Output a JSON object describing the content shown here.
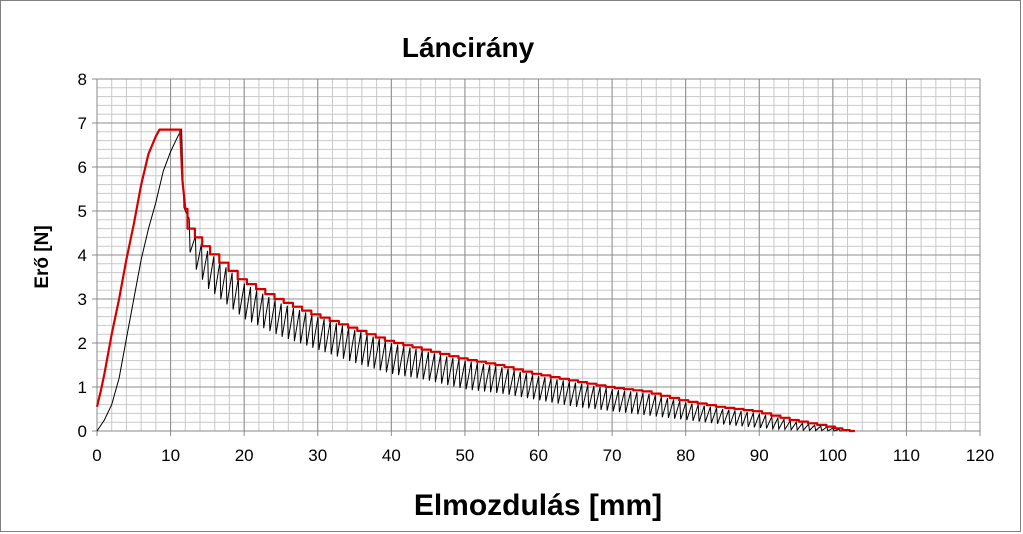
{
  "chart_data": {
    "type": "line",
    "title": "Láncirány",
    "xlabel": "Elmozdulás [mm]",
    "ylabel": "Erő [N]",
    "xlim": [
      0,
      120
    ],
    "ylim": [
      0,
      8
    ],
    "x_ticks": [
      "0",
      "10",
      "20",
      "30",
      "40",
      "50",
      "60",
      "70",
      "80",
      "90",
      "100",
      "110",
      "120"
    ],
    "y_ticks": [
      "0",
      "1",
      "2",
      "3",
      "4",
      "5",
      "6",
      "7",
      "8"
    ],
    "grid": "major and minor",
    "legend": "none",
    "series": [
      {
        "color": "#000000",
        "kind": "sawtooth",
        "rise": {
          "x": [
            0,
            1,
            2,
            3,
            4,
            5,
            6,
            7,
            8,
            9,
            10,
            11,
            11.5
          ],
          "y": [
            0,
            0.25,
            0.6,
            1.2,
            2.1,
            3.0,
            3.9,
            4.6,
            5.2,
            5.9,
            6.35,
            6.7,
            6.85
          ]
        },
        "peaks": {
          "x": [
            11.7,
            12.2,
            13,
            15,
            20,
            25,
            30,
            35,
            40,
            45,
            50,
            55,
            60,
            65,
            70,
            75,
            80,
            85,
            90,
            95,
            100,
            102
          ],
          "y": [
            5.65,
            5.05,
            4.5,
            4.1,
            3.35,
            2.9,
            2.6,
            2.3,
            2.0,
            1.8,
            1.6,
            1.45,
            1.25,
            1.1,
            0.95,
            0.85,
            0.65,
            0.5,
            0.4,
            0.2,
            0.07,
            0.0
          ]
        },
        "troughs": {
          "x": [
            11.7,
            12.2,
            13,
            15,
            20,
            25,
            30,
            35,
            40,
            45,
            50,
            55,
            60,
            65,
            70,
            75,
            80,
            85,
            90,
            95,
            100,
            102
          ],
          "y": [
            5.3,
            4.4,
            3.8,
            3.25,
            2.55,
            2.15,
            1.85,
            1.55,
            1.3,
            1.15,
            0.95,
            0.85,
            0.7,
            0.55,
            0.45,
            0.35,
            0.25,
            0.15,
            0.07,
            0.02,
            0.0,
            0.0
          ]
        },
        "teeth_per_mm": 1.2
      },
      {
        "color": "#d40000",
        "kind": "envelope",
        "x": [
          0,
          0.5,
          1,
          2,
          3,
          4,
          5,
          6,
          7,
          8,
          8.5,
          10,
          11.3,
          11.6,
          12,
          13,
          15,
          20,
          25,
          30,
          35,
          40,
          45,
          50,
          55,
          60,
          65,
          70,
          75,
          80,
          85,
          90,
          95,
          100,
          102,
          103
        ],
        "y": [
          0.55,
          0.9,
          1.3,
          2.2,
          3.0,
          3.9,
          4.7,
          5.6,
          6.3,
          6.7,
          6.85,
          6.85,
          6.85,
          5.7,
          5.05,
          4.6,
          4.2,
          3.45,
          3.0,
          2.65,
          2.35,
          2.05,
          1.85,
          1.65,
          1.5,
          1.3,
          1.15,
          1.0,
          0.9,
          0.7,
          0.55,
          0.45,
          0.25,
          0.1,
          0.02,
          0.0
        ]
      }
    ]
  }
}
